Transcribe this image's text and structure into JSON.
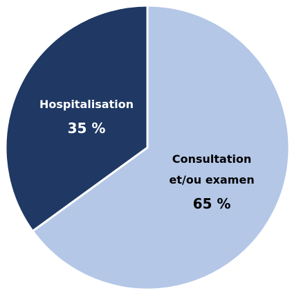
{
  "chart_data": {
    "type": "pie",
    "categories": [
      "Consultation et/ou examen",
      "Hospitalisation"
    ],
    "values": [
      65,
      35
    ],
    "value_labels": [
      "65 %",
      "35 %"
    ],
    "colors": [
      "#b4c7e7",
      "#1f3864"
    ]
  }
}
